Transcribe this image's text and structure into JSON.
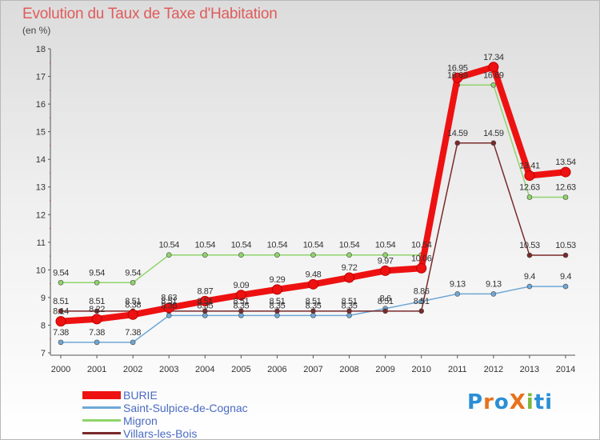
{
  "title": "Evolution du Taux de Taxe d'Habitation",
  "unit_label": "(en %)",
  "brand": "ProXiti",
  "chart_data": {
    "type": "line",
    "x": [
      "2000",
      "2001",
      "2002",
      "2003",
      "2004",
      "2005",
      "2006",
      "2007",
      "2008",
      "2009",
      "2010",
      "2011",
      "2012",
      "2013",
      "2014"
    ],
    "ylim": [
      7,
      18
    ],
    "yticks": [
      "7",
      "8",
      "9",
      "10",
      "11",
      "12",
      "13",
      "14",
      "15",
      "16",
      "17",
      "18"
    ],
    "grid": false,
    "legend_position": "bottom-left",
    "series": [
      {
        "name": "BURIE",
        "color": "#ee1111",
        "values": [
          8.14,
          8.22,
          8.38,
          8.63,
          8.87,
          9.09,
          9.29,
          9.48,
          9.72,
          9.97,
          10.06,
          16.95,
          17.34,
          13.41,
          13.54
        ],
        "labels": [
          "8.14",
          "8.22",
          "8.38",
          "8.63",
          "8.87",
          "9.09",
          "9.29",
          "9.48",
          "9.72",
          "9.97",
          "10.06",
          "16.95",
          "17.34",
          "13.41",
          "13.54"
        ]
      },
      {
        "name": "Saint-Sulpice-de-Cognac",
        "color": "#6fa8d6",
        "values": [
          7.38,
          7.38,
          7.38,
          8.35,
          8.35,
          8.35,
          8.35,
          8.35,
          8.35,
          8.6,
          8.86,
          9.13,
          9.13,
          9.4,
          9.4
        ],
        "labels": [
          "7.38",
          "7.38",
          "7.38",
          "8.35",
          "8.35",
          "8.35",
          "8.35",
          "8.35",
          "8.35",
          "8.6",
          "8.86",
          "9.13",
          "9.13",
          "9.4",
          "9.4"
        ]
      },
      {
        "name": "Migron",
        "color": "#8fd46a",
        "values": [
          9.54,
          9.54,
          9.54,
          10.54,
          10.54,
          10.54,
          10.54,
          10.54,
          10.54,
          10.54,
          10.54,
          16.69,
          16.69,
          12.63,
          12.63
        ],
        "labels": [
          "9.54",
          "9.54",
          "9.54",
          "10.54",
          "10.54",
          "10.54",
          "10.54",
          "10.54",
          "10.54",
          "10.54",
          "10.54",
          "16.69",
          "16.69",
          "12.63",
          "12.63"
        ]
      },
      {
        "name": "Villars-les-Bois",
        "color": "#7a2a2a",
        "values": [
          8.51,
          8.51,
          8.51,
          8.51,
          8.51,
          8.51,
          8.51,
          8.51,
          8.51,
          8.51,
          8.51,
          14.59,
          14.59,
          10.53,
          10.53
        ],
        "labels": [
          "8.51",
          "8.51",
          "8.51",
          "8.51",
          "8.51",
          "8.51",
          "8.51",
          "8.51",
          "8.51",
          "8.51",
          "8.51",
          "14.59",
          "14.59",
          "10.53",
          "10.53"
        ]
      }
    ]
  }
}
